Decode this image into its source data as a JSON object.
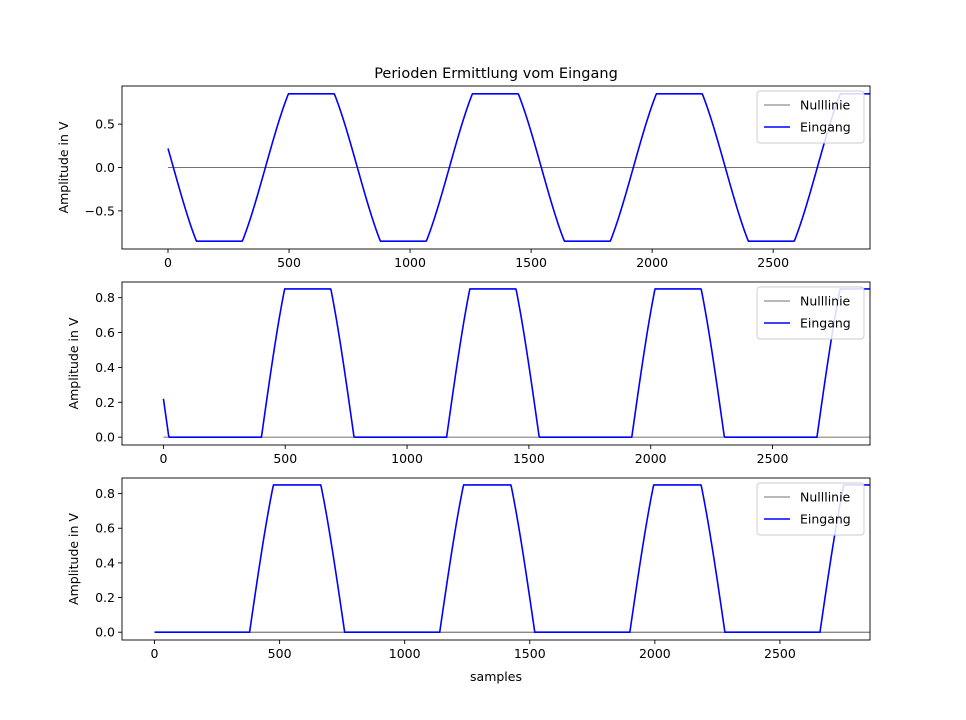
{
  "chart_data": [
    {
      "type": "line",
      "title": "Perioden Ermittlung vom Eingang",
      "xlabel": "",
      "ylabel": "Amplitude in V",
      "xlim": [
        -190,
        2900
      ],
      "ylim": [
        -0.94,
        0.94
      ],
      "xticks": [
        0,
        500,
        1000,
        1500,
        2000,
        2500
      ],
      "yticks": [
        -0.5,
        0.0,
        0.5
      ],
      "ytick_labels": [
        "−0.5",
        "0.0",
        "0.5"
      ],
      "grid": false,
      "legend": "top-right",
      "series": [
        {
          "name": "Nulllinie",
          "color": "#444444",
          "x": [
            0,
            2900
          ],
          "y": [
            0,
            0
          ]
        },
        {
          "name": "Eingang",
          "color": "#0000ff",
          "wave": {
            "kind": "clipped_sine",
            "amplitude": 1.2,
            "clip_top": 0.85,
            "clip_bottom": -0.85,
            "period": 760,
            "phase_start": 0.22,
            "x_start": 0,
            "x_end": 2900
          }
        }
      ]
    },
    {
      "type": "line",
      "title": "",
      "xlabel": "",
      "ylabel": "Amplitude in V",
      "xlim": [
        -170,
        2900
      ],
      "ylim": [
        -0.045,
        0.89
      ],
      "xticks": [
        0,
        500,
        1000,
        1500,
        2000,
        2500
      ],
      "yticks": [
        0.0,
        0.2,
        0.4,
        0.6,
        0.8
      ],
      "ytick_labels": [
        "0.0",
        "0.2",
        "0.4",
        "0.6",
        "0.8"
      ],
      "grid": false,
      "legend": "top-right",
      "series": [
        {
          "name": "Nulllinie",
          "color": "#444444",
          "x": [
            0,
            2900
          ],
          "y": [
            0,
            0
          ]
        },
        {
          "name": "Eingang",
          "color": "#0000ff",
          "wave": {
            "kind": "half_wave",
            "amplitude": 1.2,
            "clip_top": 0.85,
            "period": 760,
            "phase_start": 0.22,
            "x_start": 0,
            "x_end": 2900
          }
        }
      ]
    },
    {
      "type": "line",
      "title": "",
      "xlabel": "samples",
      "ylabel": "Amplitude in V",
      "xlim": [
        -130,
        2860
      ],
      "ylim": [
        -0.045,
        0.89
      ],
      "xticks": [
        0,
        500,
        1000,
        1500,
        2000,
        2500
      ],
      "yticks": [
        0.0,
        0.2,
        0.4,
        0.6,
        0.8
      ],
      "ytick_labels": [
        "0.0",
        "0.2",
        "0.4",
        "0.6",
        "0.8"
      ],
      "grid": false,
      "legend": "top-right",
      "series": [
        {
          "name": "Nulllinie",
          "color": "#444444",
          "x": [
            0,
            2860
          ],
          "y": [
            0,
            0
          ]
        },
        {
          "name": "Eingang",
          "color": "#0000ff",
          "wave": {
            "kind": "half_wave",
            "amplitude": 1.2,
            "clip_top": 0.85,
            "period": 760,
            "phase_start": 0.0,
            "x_start": 0,
            "x_end": 2860
          }
        }
      ]
    }
  ]
}
